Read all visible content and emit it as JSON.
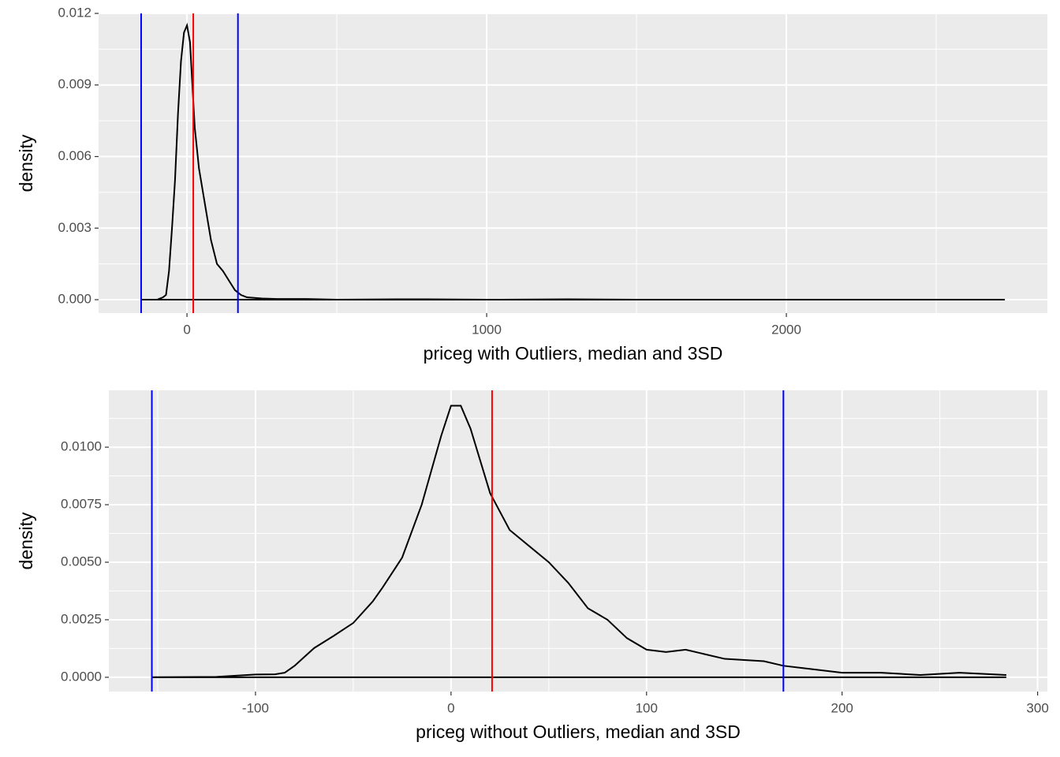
{
  "chart_data": [
    {
      "type": "line",
      "x_label": "priceg with Outliers, median and 3SD",
      "y_label": "density",
      "xlim": [
        -295,
        2871
      ],
      "ylim": [
        -0.00056,
        0.012
      ],
      "xticks": [
        0,
        1000,
        2000
      ],
      "xminor": [
        500,
        1500,
        2500
      ],
      "yticks": [
        {
          "value": 0,
          "label": "0.000"
        },
        0.003,
        0.006,
        0.009,
        0.012
      ],
      "yminor": [
        0.0015,
        0.0045,
        0.0075,
        0.0105
      ],
      "grid": true,
      "series": [
        {
          "name": "density",
          "color": "#000000",
          "x": [
            -153,
            -100,
            -80,
            -70,
            -60,
            -50,
            -40,
            -30,
            -20,
            -10,
            0,
            10,
            26,
            40,
            60,
            80,
            100,
            120,
            140,
            160,
            180,
            200,
            250,
            300,
            400,
            500,
            700,
            800,
            1000,
            1270,
            1500,
            2729
          ],
          "values": [
            0,
            0,
            0.0001,
            0.0002,
            0.0012,
            0.003,
            0.005,
            0.0078,
            0.01,
            0.0112,
            0.0115,
            0.0108,
            0.0072,
            0.0055,
            0.004,
            0.0025,
            0.0015,
            0.0012,
            0.0008,
            0.0004,
            0.0002,
            0.0001,
            5e-05,
            3e-05,
            3e-05,
            0,
            2e-05,
            2e-05,
            0,
            2e-05,
            0,
            0
          ]
        }
      ],
      "vlines": [
        {
          "value": -153,
          "color": "#0000ff"
        },
        {
          "value": 21,
          "color": "#ff0000"
        },
        {
          "value": 170,
          "color": "#0000ff"
        }
      ]
    },
    {
      "type": "line",
      "x_label": "priceg without Outliers, median and 3SD",
      "y_label": "density",
      "xlim": [
        -175,
        305
      ],
      "ylim": [
        -0.00062,
        0.01247
      ],
      "xticks": [
        -100,
        0,
        100,
        200,
        300
      ],
      "xminor": [
        -150,
        -50,
        50,
        150,
        250
      ],
      "yticks": [
        {
          "value": 0,
          "label": "0.0000"
        },
        0.0025,
        {
          "value": 0.005,
          "label": "0.0050"
        },
        {
          "value": 0.0075,
          "label": "0.0075"
        },
        {
          "value": 0.01,
          "label": "0.0100"
        }
      ],
      "yminor": [
        0.00125,
        0.00375,
        0.00625,
        0.00875,
        0.01125
      ],
      "grid": true,
      "series": [
        {
          "name": "density",
          "color": "#000000",
          "x": [
            -153,
            -120,
            -100,
            -90,
            -85,
            -80,
            -70,
            -60,
            -50,
            -40,
            -35,
            -25,
            -15,
            -5,
            0,
            5,
            10,
            20,
            30,
            40,
            50,
            60,
            70,
            80,
            90,
            100,
            110,
            120,
            130,
            140,
            160,
            170,
            180,
            200,
            220,
            240,
            260,
            284
          ],
          "values": [
            0,
            2e-05,
            0.00012,
            0.00013,
            0.0002,
            0.0005,
            0.00127,
            0.0018,
            0.00236,
            0.0033,
            0.0039,
            0.0052,
            0.0075,
            0.0105,
            0.0118,
            0.0118,
            0.0108,
            0.008,
            0.0064,
            0.0057,
            0.005,
            0.0041,
            0.003,
            0.0025,
            0.0017,
            0.0012,
            0.0011,
            0.0012,
            0.001,
            0.0008,
            0.0007,
            0.0005,
            0.0004,
            0.0002,
            0.0002,
            0.0001,
            0.0002,
            0.0001
          ]
        }
      ],
      "vlines": [
        {
          "value": -153,
          "color": "#0000ff"
        },
        {
          "value": 21,
          "color": "#ff0000"
        },
        {
          "value": 170,
          "color": "#0000ff"
        }
      ]
    }
  ]
}
